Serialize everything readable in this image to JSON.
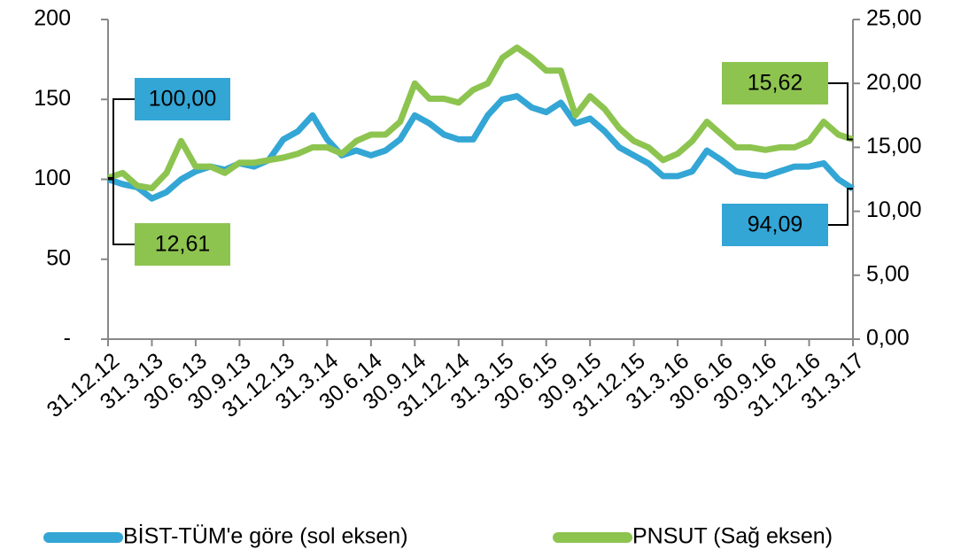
{
  "chart_data": {
    "type": "line",
    "categories": [
      "31.12.12",
      null,
      null,
      "31.3.13",
      null,
      null,
      "30.6.13",
      null,
      null,
      "30.9.13",
      null,
      null,
      "31.12.13",
      null,
      null,
      "31.3.14",
      null,
      null,
      "30.6.14",
      null,
      null,
      "30.9.14",
      null,
      null,
      "31.12.14",
      null,
      null,
      "31.3.15",
      null,
      null,
      "30.6.15",
      null,
      null,
      "30.9.15",
      null,
      null,
      "31.12.15",
      null,
      null,
      "31.3.16",
      null,
      null,
      "30.6.16",
      null,
      null,
      "30.9.16",
      null,
      null,
      "31.12.16",
      null,
      null,
      "31.3.17"
    ],
    "series": [
      {
        "name": "BİST-TÜM'e göre (sol eksen)",
        "color": "#33a6d5",
        "values": [
          100,
          97,
          95,
          88,
          92,
          100,
          105,
          108,
          106,
          110,
          108,
          112,
          125,
          130,
          140,
          125,
          115,
          118,
          115,
          118,
          125,
          140,
          135,
          128,
          125,
          125,
          140,
          150,
          152,
          145,
          142,
          148,
          135,
          138,
          130,
          120,
          115,
          110,
          102,
          102,
          105,
          118,
          112,
          105,
          103,
          102,
          105,
          108,
          108,
          110,
          100,
          94.09
        ],
        "value_labels": [
          "100,00",
          null,
          null,
          null,
          null,
          null,
          null,
          null,
          null,
          null,
          null,
          null,
          null,
          null,
          null,
          null,
          null,
          null,
          null,
          null,
          null,
          null,
          null,
          null,
          null,
          null,
          null,
          null,
          null,
          null,
          null,
          null,
          null,
          null,
          null,
          null,
          null,
          null,
          null,
          null,
          null,
          null,
          null,
          null,
          null,
          null,
          null,
          null,
          null,
          null,
          null,
          "94,09"
        ]
      },
      {
        "name": "PNSUT (Sağ eksen)",
        "color": "#8dc450",
        "axis": "y2",
        "values": [
          12.61,
          13,
          12,
          11.8,
          13,
          15.5,
          13.5,
          13.5,
          13,
          13.8,
          13.8,
          14,
          14.2,
          14.5,
          15,
          15,
          14.5,
          15.5,
          16,
          16,
          17,
          20,
          18.8,
          18.8,
          18.5,
          19.5,
          20,
          22,
          22.8,
          22,
          21,
          21,
          17.5,
          19,
          18,
          16.5,
          15.5,
          15,
          14,
          14.5,
          15.5,
          17,
          16,
          15,
          15,
          14.8,
          15,
          15,
          15.5,
          17,
          16,
          15.62
        ],
        "value_labels": [
          "12,61",
          null,
          null,
          null,
          null,
          null,
          null,
          null,
          null,
          null,
          null,
          null,
          null,
          null,
          null,
          null,
          null,
          null,
          null,
          null,
          null,
          null,
          null,
          null,
          null,
          null,
          null,
          null,
          null,
          null,
          null,
          null,
          null,
          null,
          null,
          null,
          null,
          null,
          null,
          null,
          null,
          null,
          null,
          null,
          null,
          null,
          null,
          null,
          null,
          null,
          null,
          "15,62"
        ]
      }
    ],
    "ylim": [
      0,
      200
    ],
    "yticks": [
      {
        "value": 0,
        "label": "-"
      },
      50,
      100,
      150,
      200
    ],
    "y2lim": [
      0,
      25
    ],
    "y2ticks": [
      {
        "value": 0,
        "label": "0,00"
      },
      {
        "value": 5,
        "label": "5,00"
      },
      {
        "value": 10,
        "label": "10,00"
      },
      {
        "value": 15,
        "label": "15,00"
      },
      {
        "value": 20,
        "label": "20,00"
      },
      {
        "value": 25,
        "label": "25,00"
      }
    ],
    "legend": "bottom"
  }
}
